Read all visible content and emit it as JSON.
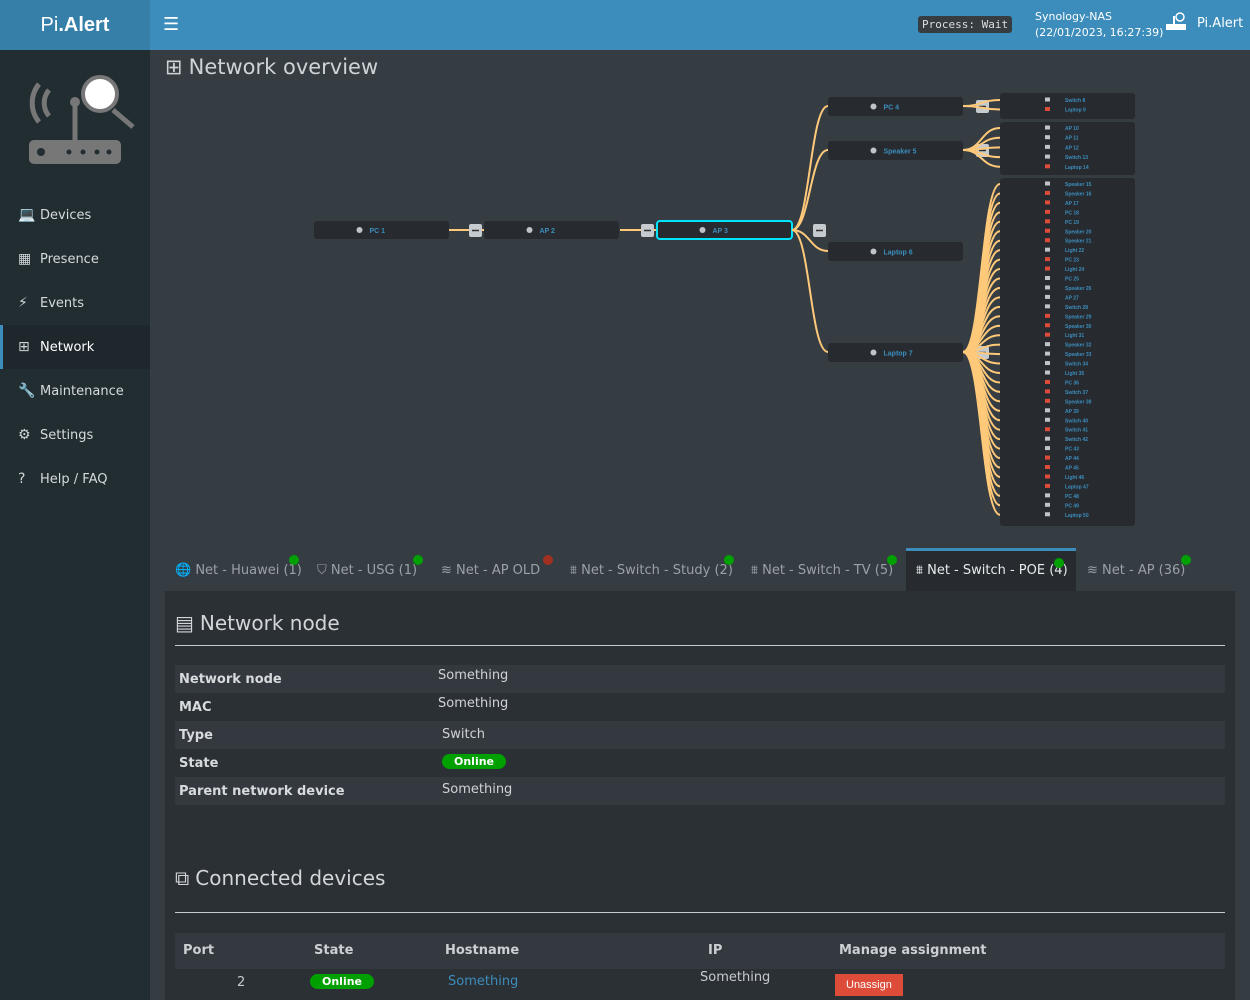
{
  "app": {
    "logo_prefix": "Pi",
    "logo_suffix": ".Alert",
    "process": "Process: Wait",
    "host": "Synology-NAS",
    "datetime": "(22/01/2023, 16:27:39)",
    "app_name": "Pi.Alert"
  },
  "sidebar": {
    "items": [
      {
        "label": "Devices",
        "icon": "laptop-icon",
        "glyph": "💻"
      },
      {
        "label": "Presence",
        "icon": "calendar-icon",
        "glyph": "▦"
      },
      {
        "label": "Events",
        "icon": "bolt-icon",
        "glyph": "⚡"
      },
      {
        "label": "Network",
        "icon": "sitemap-icon",
        "glyph": "⊞",
        "active": true
      },
      {
        "label": "Maintenance",
        "icon": "wrench-icon",
        "glyph": "🔧"
      },
      {
        "label": "Settings",
        "icon": "gear-icon",
        "glyph": "⚙"
      },
      {
        "label": "Help / FAQ",
        "icon": "question-icon",
        "glyph": "?"
      }
    ]
  },
  "page_title": "Network overview",
  "tree": {
    "chain": [
      {
        "label": "PC 1",
        "icon": "globe"
      },
      {
        "label": "AP 2",
        "icon": "shield"
      },
      {
        "label": "AP 3",
        "icon": "ethernet",
        "selected": true
      }
    ],
    "children": [
      {
        "label": "PC 4",
        "icon": "ethernet",
        "leaves": [
          {
            "label": "Switch 8"
          },
          {
            "label": "Laptop 9",
            "down": true
          }
        ]
      },
      {
        "label": "Speaker 5",
        "icon": "ethernet",
        "leaves": [
          {
            "label": "AP 10"
          },
          {
            "label": "AP 11"
          },
          {
            "label": "AP 12"
          },
          {
            "label": "Switch 13"
          },
          {
            "label": "Laptop 14",
            "down": true
          }
        ]
      },
      {
        "label": "Laptop 6",
        "icon": "device",
        "leaves": []
      },
      {
        "label": "Laptop 7",
        "icon": "wifi",
        "leaves": [
          {
            "label": "Speaker 15"
          },
          {
            "label": "Speaker 16",
            "down": true
          },
          {
            "label": "AP 17",
            "down": true
          },
          {
            "label": "PC 18",
            "down": true
          },
          {
            "label": "PC 19",
            "down": true
          },
          {
            "label": "Speaker 20",
            "down": true
          },
          {
            "label": "Speaker 21",
            "down": true
          },
          {
            "label": "Light 22"
          },
          {
            "label": "PC 23",
            "down": true
          },
          {
            "label": "Light 24",
            "down": true
          },
          {
            "label": "PC 25"
          },
          {
            "label": "Speaker 26"
          },
          {
            "label": "AP 27"
          },
          {
            "label": "Switch 28"
          },
          {
            "label": "Speaker 29",
            "down": true
          },
          {
            "label": "Speaker 30",
            "down": true
          },
          {
            "label": "Light 31",
            "down": true
          },
          {
            "label": "Speaker 32"
          },
          {
            "label": "Speaker 33"
          },
          {
            "label": "Switch 34"
          },
          {
            "label": "Light 35"
          },
          {
            "label": "PC 36",
            "down": true
          },
          {
            "label": "Switch 37",
            "down": true
          },
          {
            "label": "Speaker 38",
            "down": true
          },
          {
            "label": "AP 39"
          },
          {
            "label": "Switch 40"
          },
          {
            "label": "Switch 41",
            "down": true
          },
          {
            "label": "Switch 42"
          },
          {
            "label": "PC 43"
          },
          {
            "label": "AP 44",
            "down": true
          },
          {
            "label": "AP 45",
            "down": true
          },
          {
            "label": "Light 46",
            "down": true
          },
          {
            "label": "Laptop 47",
            "down": true
          },
          {
            "label": "PC 48"
          },
          {
            "label": "PC 49"
          },
          {
            "label": "Laptop 50"
          }
        ]
      }
    ],
    "colors": {
      "link": "#ffc97a",
      "node": "#272b30",
      "label": "#3c8dbc",
      "selected": "#00e5ff",
      "down": "#dd4b39",
      "up": "#c0c4c8"
    }
  },
  "tabs": [
    {
      "label": "Net - Huawei (1)",
      "icon": "globe-icon",
      "glyph": "🌐",
      "status": "#00a000"
    },
    {
      "label": "Net - USG (1)",
      "icon": "shield-icon",
      "glyph": "⛉",
      "status": "#00a000"
    },
    {
      "label": "Net - AP OLD",
      "icon": "wifi-icon",
      "glyph": "≋",
      "status": "#a03020"
    },
    {
      "label": "Net - Switch - Study (2)",
      "icon": "ethernet-icon",
      "glyph": "⩩",
      "status": "#00a000"
    },
    {
      "label": "Net - Switch - TV (5)",
      "icon": "ethernet-icon",
      "glyph": "⩩",
      "status": "#00a000"
    },
    {
      "label": "Net - Switch - POE (4)",
      "icon": "ethernet-icon",
      "glyph": "⩩",
      "status": "#00a000",
      "active": true
    },
    {
      "label": "Net - AP (36)",
      "icon": "wifi-icon",
      "glyph": "≋",
      "status": "#00a000"
    }
  ],
  "node": {
    "title": "Network node",
    "rows": [
      {
        "k": "Network node",
        "v": "Something"
      },
      {
        "k": "MAC",
        "v": "Something"
      },
      {
        "k": "Type",
        "v": "Switch"
      },
      {
        "k": "State",
        "v": "Online"
      },
      {
        "k": "Parent network device",
        "v": "Something"
      }
    ]
  },
  "connected": {
    "title": "Connected devices",
    "headers": [
      "Port",
      "State",
      "Hostname",
      "IP",
      "Manage assignment"
    ],
    "rows": [
      {
        "port": "2",
        "state": "Online",
        "hostname": "Something",
        "ip": "Something",
        "action": "Unassign"
      }
    ]
  }
}
